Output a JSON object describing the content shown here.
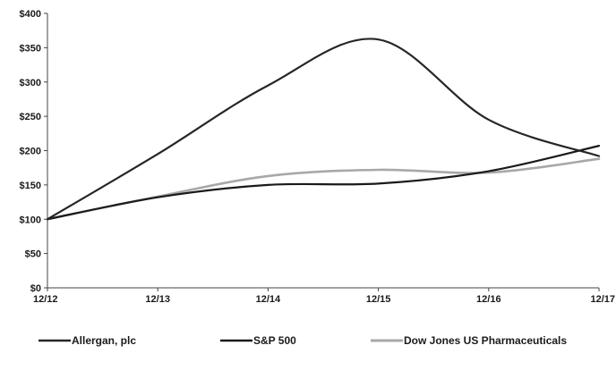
{
  "chart_data": {
    "type": "line",
    "categories": [
      "12/12",
      "12/13",
      "12/14",
      "12/15",
      "12/16",
      "12/17"
    ],
    "series": [
      {
        "name": "Allergan, plc",
        "values": [
          100,
          195,
          295,
          362,
          245,
          192
        ],
        "color": "#262626"
      },
      {
        "name": "S&P 500",
        "values": [
          100,
          132,
          150,
          152,
          170,
          207
        ],
        "color": "#1a1a1a"
      },
      {
        "name": "Dow Jones US Pharmaceuticals",
        "values": [
          100,
          133,
          163,
          172,
          168,
          188
        ],
        "color": "#a8a8a8"
      }
    ],
    "y_ticks": [
      "$0",
      "$50",
      "$100",
      "$150",
      "$200",
      "$250",
      "$300",
      "$350",
      "$400"
    ],
    "ylim": [
      0,
      400
    ],
    "grid": false,
    "legend_position": "bottom"
  }
}
